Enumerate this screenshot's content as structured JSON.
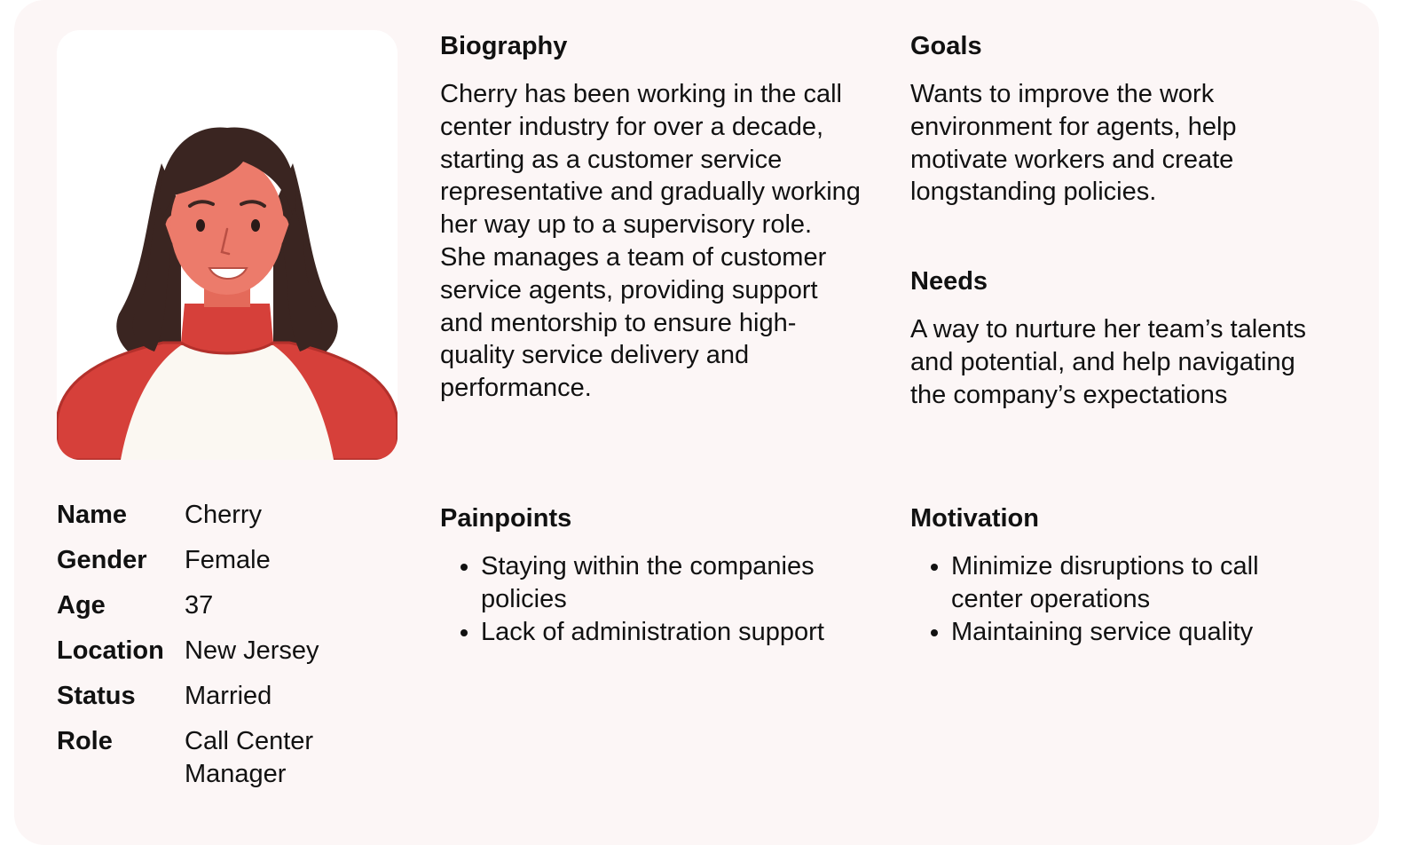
{
  "profile": {
    "rows": [
      {
        "label": "Name",
        "value": "Cherry"
      },
      {
        "label": "Gender",
        "value": "Female"
      },
      {
        "label": "Age",
        "value": "37"
      },
      {
        "label": "Location",
        "value": "New Jersey"
      },
      {
        "label": "Status",
        "value": "Married"
      },
      {
        "label": "Role",
        "value": "Call Center Manager"
      }
    ]
  },
  "biography": {
    "title": "Biography",
    "text": "Cherry has been working in the call center industry for over a decade, starting as a customer service representative and gradually working her way up to a supervisory role. She manages a team of customer service agents, providing support and mentorship to ensure high-quality service delivery and performance."
  },
  "goals": {
    "title": "Goals",
    "text": "Wants to improve the work environment for agents, help motivate workers and create longstanding policies."
  },
  "needs": {
    "title": "Needs",
    "text": "A way to nurture her team’s talents and potential, and help navigating the company’s expectations"
  },
  "painpoints": {
    "title": "Painpoints",
    "items": [
      "Staying within the companies policies",
      "Lack of administration support"
    ]
  },
  "motivation": {
    "title": "Motivation",
    "items": [
      "Minimize disruptions to call center operations",
      "Maintaining service quality"
    ]
  },
  "colors": {
    "card_bg": "#fcf6f6",
    "sweater_red": "#d6403a",
    "skin": "#ec7b6b",
    "hair": "#3a2521"
  },
  "icons": {
    "avatar": "woman-avatar-illustration"
  }
}
